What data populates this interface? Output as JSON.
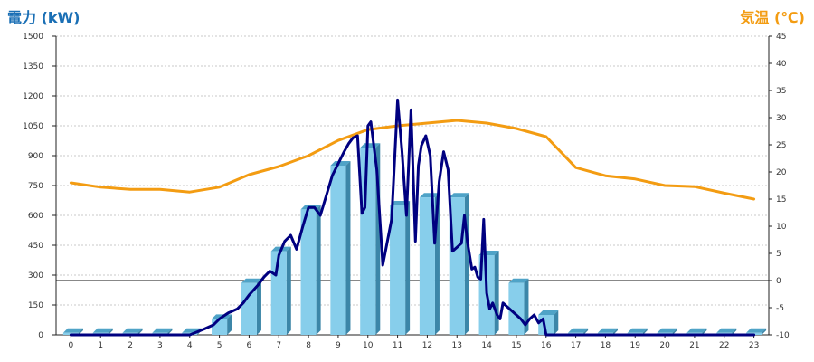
{
  "chart_data": {
    "type": "bar",
    "y_left_label": "電力 (kW)",
    "y_right_label": "気温 (℃)",
    "ylim_left": [
      0,
      1500
    ],
    "ylim_right": [
      -10,
      45
    ],
    "y_left_ticks": [
      0,
      150,
      300,
      450,
      600,
      750,
      900,
      1050,
      1200,
      1350,
      1500
    ],
    "y_right_ticks": [
      -10,
      -5,
      0,
      5,
      10,
      15,
      20,
      25,
      30,
      35,
      40,
      45
    ],
    "categories": [
      "0",
      "1",
      "2",
      "3",
      "4",
      "5",
      "6",
      "7",
      "8",
      "9",
      "10",
      "11",
      "12",
      "13",
      "14",
      "15",
      "16",
      "17",
      "18",
      "19",
      "20",
      "21",
      "22",
      "23"
    ],
    "grid": true,
    "series": [
      {
        "type": "bar",
        "axis": "left",
        "color": "#87ceeb",
        "values": [
          10,
          10,
          10,
          10,
          10,
          80,
          260,
          420,
          630,
          850,
          940,
          650,
          690,
          690,
          400,
          260,
          100,
          10,
          10,
          10,
          10,
          10,
          10,
          10
        ]
      },
      {
        "type": "line",
        "axis": "right",
        "color": "#f39c12",
        "values": [
          18,
          17.2,
          16.8,
          16.8,
          16.3,
          17.2,
          19.5,
          21,
          23,
          25.8,
          27.8,
          28.5,
          29,
          29.5,
          29,
          28,
          26.5,
          20.8,
          19.3,
          18.7,
          17.5,
          17.3,
          16.1,
          15
        ]
      },
      {
        "type": "line",
        "axis": "left",
        "color": "#000080",
        "x": [
          0,
          4,
          4.5,
          4.8,
          5,
          5.3,
          5.6,
          5.8,
          6,
          6.3,
          6.5,
          6.7,
          6.9,
          7,
          7.2,
          7.4,
          7.6,
          7.8,
          8,
          8.2,
          8.4,
          8.6,
          8.8,
          9,
          9.2,
          9.35,
          9.5,
          9.65,
          9.8,
          9.9,
          10,
          10.1,
          10.3,
          10.5,
          10.8,
          11,
          11.15,
          11.3,
          11.45,
          11.6,
          11.7,
          11.8,
          11.95,
          12.1,
          12.25,
          12.4,
          12.55,
          12.7,
          12.85,
          13,
          13.15,
          13.25,
          13.35,
          13.5,
          13.6,
          13.7,
          13.8,
          13.9,
          14,
          14.1,
          14.2,
          14.35,
          14.45,
          14.55,
          14.7,
          14.85,
          15,
          15.15,
          15.3,
          15.45,
          15.6,
          15.75,
          15.9,
          16,
          16.1,
          16.2,
          16.3,
          16.6,
          17,
          23
        ],
        "values": [
          0,
          0,
          30,
          50,
          80,
          110,
          130,
          160,
          200,
          250,
          290,
          320,
          300,
          400,
          470,
          500,
          430,
          540,
          640,
          640,
          600,
          700,
          800,
          860,
          920,
          960,
          990,
          1000,
          610,
          640,
          1050,
          1070,
          830,
          350,
          580,
          1180,
          920,
          600,
          1130,
          470,
          850,
          950,
          1000,
          900,
          460,
          770,
          920,
          830,
          420,
          440,
          460,
          600,
          470,
          330,
          340,
          290,
          280,
          580,
          210,
          130,
          160,
          100,
          80,
          160,
          140,
          120,
          100,
          80,
          50,
          80,
          100,
          60,
          80,
          0,
          0,
          0,
          0,
          0,
          0,
          0
        ]
      }
    ],
    "reference_lines": [
      {
        "axis": "right",
        "value": 0
      }
    ]
  }
}
